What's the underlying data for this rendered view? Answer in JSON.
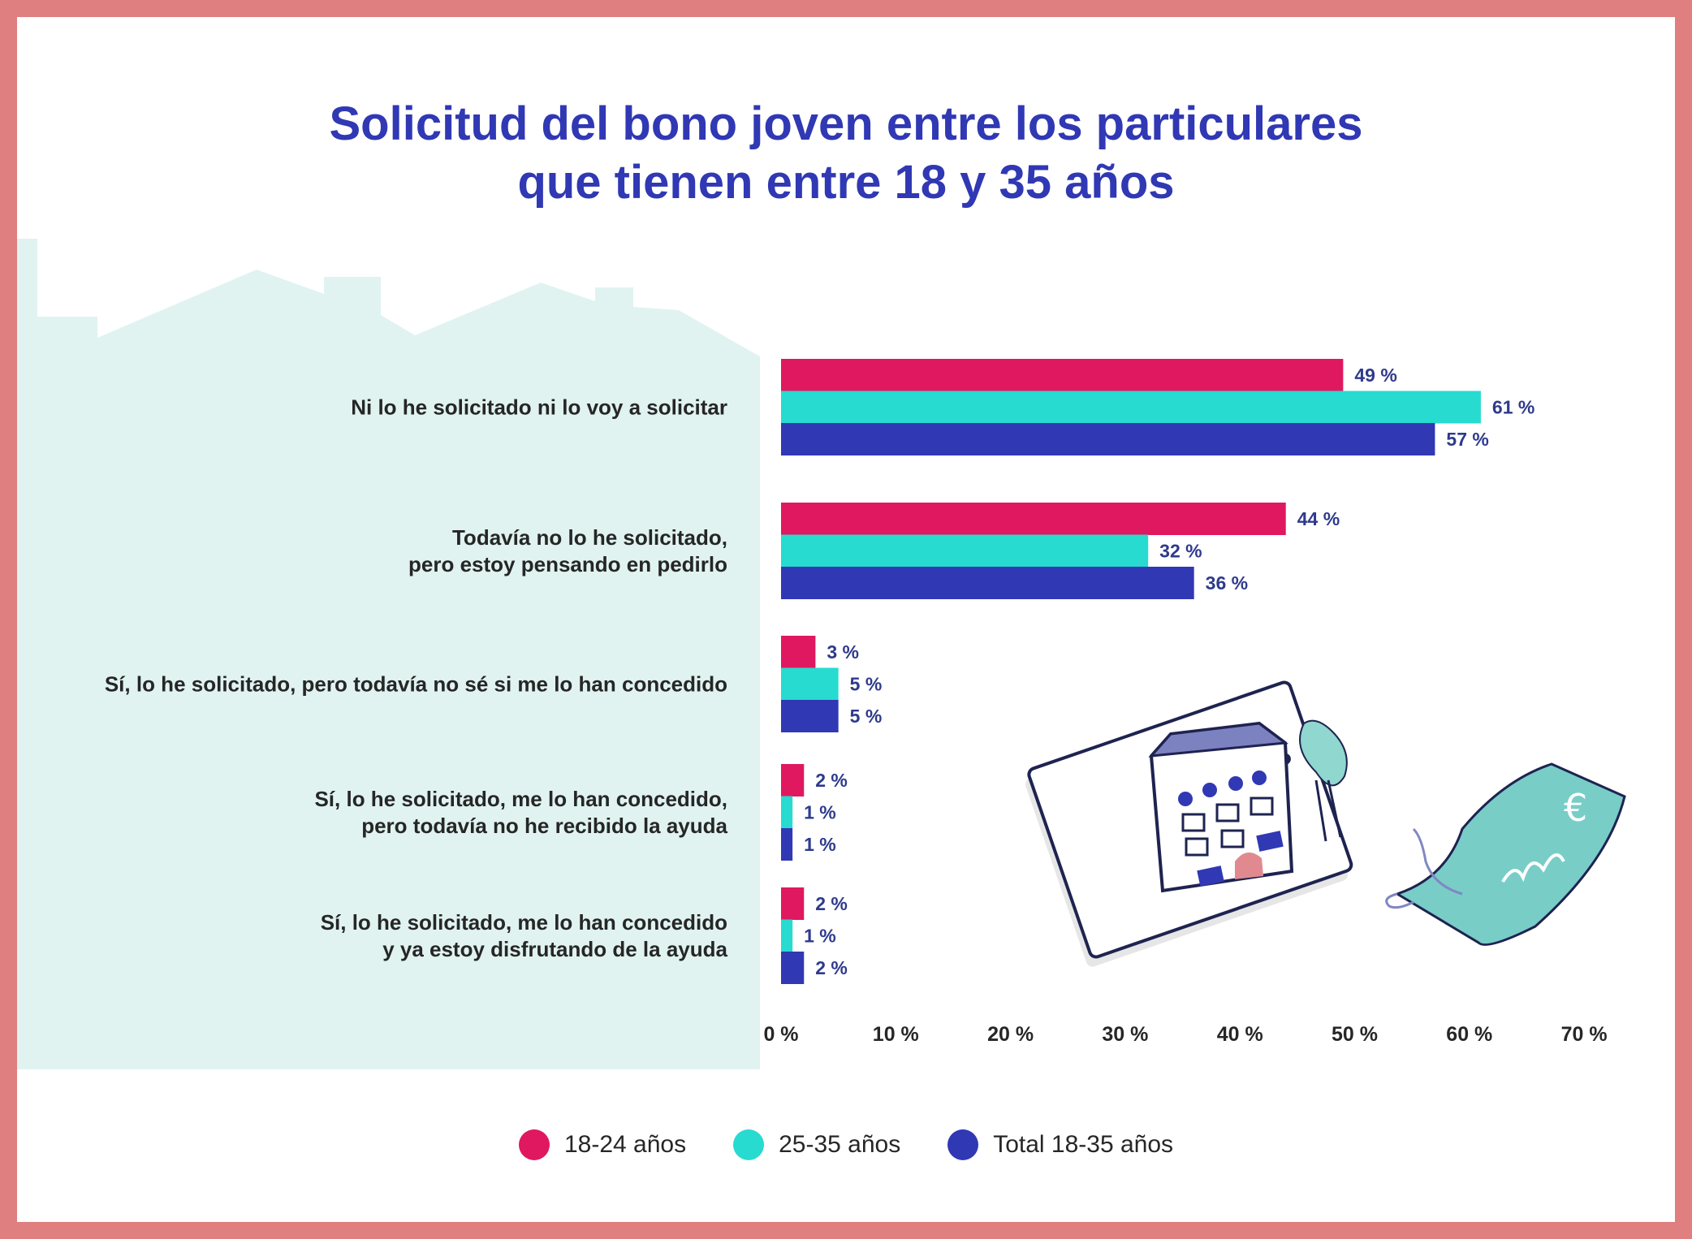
{
  "chart_data": {
    "type": "bar",
    "orientation": "horizontal",
    "title": [
      "Solicitud del bono joven entre los particulares",
      "que tienen entre 18 y 35 años"
    ],
    "categories": [
      [
        "Ni lo he solicitado ni lo voy a solicitar"
      ],
      [
        "Todavía no lo he solicitado,",
        "pero estoy pensando en pedirlo"
      ],
      [
        "Sí, lo he solicitado, pero todavía no sé si me lo han concedido"
      ],
      [
        "Sí, lo he solicitado, me lo han concedido,",
        "pero todavía no he recibido la ayuda"
      ],
      [
        "Sí, lo he solicitado, me lo han concedido",
        "y ya estoy disfrutando de la ayuda"
      ]
    ],
    "series": [
      {
        "name": "18-24 años",
        "color": "#e0185f",
        "values": [
          49,
          44,
          3,
          2,
          2
        ]
      },
      {
        "name": "25-35 años",
        "color": "#27dbd0",
        "values": [
          61,
          32,
          5,
          1,
          1
        ]
      },
      {
        "name": "Total 18-35 años",
        "color": "#3038b4",
        "values": [
          57,
          36,
          5,
          1,
          2
        ]
      }
    ],
    "xlim": [
      0,
      70
    ],
    "ticks": [
      0,
      10,
      20,
      30,
      40,
      50,
      60,
      70
    ],
    "unit": " %",
    "legend_position": "bottom"
  }
}
